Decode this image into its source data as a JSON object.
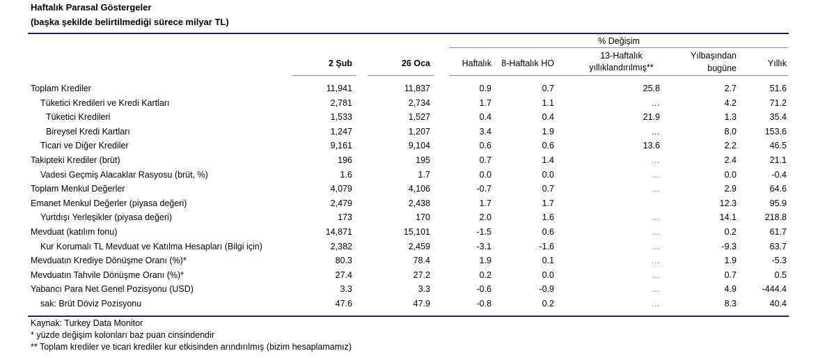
{
  "title": "Haftalık Parasal Göstergeler",
  "subtitle": "(başka şekilde belirtilmediği sürece milyar TL)",
  "header": {
    "pct_change": "% Değişim",
    "col_feb2": "2 Şub",
    "col_jan26": "26 Oca",
    "col_weekly": "Haftalık",
    "col_8w": "8-Haftalık HO",
    "col_13w_line1": "13-Haftalık",
    "col_13w_line2": "yıllıklandırılmış**",
    "col_ytd_line1": "Yılbaşından",
    "col_ytd_line2": "bugüne",
    "col_annual": "Yıllık"
  },
  "rows": [
    {
      "label": "Toplam Krediler",
      "indent": 0,
      "v1": "11,941",
      "v2": "11,837",
      "w": "0.9",
      "w8": "0.7",
      "w13": "25.8",
      "ytd": "2.7",
      "ann": "51.6"
    },
    {
      "label": "Tüketici Kredileri ve Kredi Kartları",
      "indent": 1,
      "v1": "2,781",
      "v2": "2,734",
      "w": "1.7",
      "w8": "1.1",
      "w13": "…",
      "ytd": "4.2",
      "ann": "71.2"
    },
    {
      "label": "Tüketici Kredileri",
      "indent": 2,
      "v1": "1,533",
      "v2": "1,527",
      "w": "0.4",
      "w8": "0.4",
      "w13": "21.9",
      "ytd": "1.3",
      "ann": "35.4"
    },
    {
      "label": "Bireysel Kredi Kartları",
      "indent": 2,
      "v1": "1,247",
      "v2": "1,207",
      "w": "3.4",
      "w8": "1.9",
      "w13": "…",
      "ytd": "8.0",
      "ann": "153.6"
    },
    {
      "label": "Ticari ve Diğer Krediler",
      "indent": 1,
      "v1": "9,161",
      "v2": "9,104",
      "w": "0.6",
      "w8": "0.6",
      "w13": "13.6",
      "ytd": "2.2",
      "ann": "46.5"
    },
    {
      "label": "Takipteki Krediler (brüt)",
      "indent": 0,
      "v1": "196",
      "v2": "195",
      "w": "0.7",
      "w8": "1.4",
      "w13": "…",
      "ytd": "2.4",
      "ann": "21.1"
    },
    {
      "label": "Vadesi Geçmiş Alacaklar Rasyosu (brüt, %)",
      "indent": 1,
      "v1": "1.6",
      "v2": "1.7",
      "w": "0.0",
      "w8": "0.0",
      "w13": "…",
      "ytd": "0.0",
      "ann": "-0.4"
    },
    {
      "label": "Toplam Menkul Değerler",
      "indent": 0,
      "v1": "4,079",
      "v2": "4,106",
      "w": "-0.7",
      "w8": "0.7",
      "w13": "…",
      "ytd": "2.9",
      "ann": "64.6"
    },
    {
      "label": "Emanet Menkul Değerler (piyasa değeri)",
      "indent": 0,
      "v1": "2,479",
      "v2": "2,438",
      "w": "1.7",
      "w8": "1.7",
      "w13": "",
      "ytd": "12.3",
      "ann": "95.9"
    },
    {
      "label": "Yurtdışı Yerleşikler (piyasa değeri)",
      "indent": 1,
      "v1": "173",
      "v2": "170",
      "w": "2.0",
      "w8": "1.6",
      "w13": "…",
      "ytd": "14.1",
      "ann": "218.8"
    },
    {
      "label": "Mevduat (katılım fonu)",
      "indent": 0,
      "v1": "14,871",
      "v2": "15,101",
      "w": "-1.5",
      "w8": "0.6",
      "w13": "…",
      "ytd": "0.2",
      "ann": "61.7"
    },
    {
      "label": "Kur Korumalı TL Mevduat ve Katılma Hesapları (Bilgi için)",
      "indent": 1,
      "v1": "2,382",
      "v2": "2,459",
      "w": "-3.1",
      "w8": "-1.6",
      "w13": "…",
      "ytd": "-9.3",
      "ann": "63.7"
    },
    {
      "label": "Mevduatın Krediye Dönüşme Oranı (%)*",
      "indent": 0,
      "v1": "80.3",
      "v2": "78.4",
      "w": "1.9",
      "w8": "0.1",
      "w13": "…",
      "ytd": "1.9",
      "ann": "-5.3"
    },
    {
      "label": "Mevduatın Tahvile Dönüşme Oranı (%)*",
      "indent": 0,
      "v1": "27.4",
      "v2": "27.2",
      "w": "0.2",
      "w8": "0.0",
      "w13": "…",
      "ytd": "0.7",
      "ann": "0.5"
    },
    {
      "label": "Yabancı Para Net Genel Pozisyonu (USD)",
      "indent": 0,
      "v1": "3.3",
      "v2": "3.3",
      "w": "-0.6",
      "w8": "-0.9",
      "w13": "…",
      "ytd": "4.9",
      "ann": "-444.4"
    },
    {
      "label": "sak: Brüt Döviz Pozisyonu",
      "indent": 1,
      "v1": "47.6",
      "v2": "47.9",
      "w": "-0.8",
      "w8": "0.2",
      "w13": "…",
      "ytd": "8.3",
      "ann": "40.4"
    }
  ],
  "dots_red_rows": [
    5,
    6,
    7,
    9,
    10,
    11,
    12,
    13,
    14,
    15
  ],
  "notes": [
    "Kaynak: Turkey Data Monitor",
    "* yüzde değişim kolonları baz puan cinsindendir",
    "** Toplam krediler ve ticari krediler kur etkisinden arındırılmış (bizim hesaplamamız)"
  ],
  "colors": {
    "rule": "#1f1f6b",
    "dots": "#c0504d"
  }
}
